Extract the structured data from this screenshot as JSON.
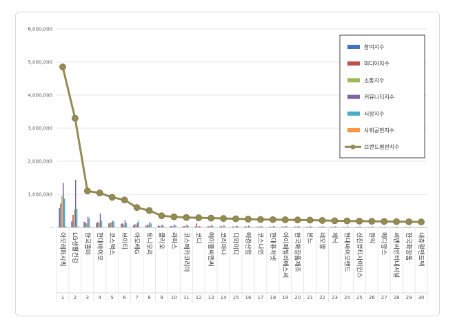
{
  "chart_data": {
    "type": "bar",
    "title": "",
    "xlabel": "",
    "ylabel": "",
    "ylim": [
      0,
      6000000
    ],
    "yticks": [
      "-",
      "1,000,000",
      "2,000,000",
      "3,000,000",
      "4,000,000",
      "5,000,000",
      "6,000,000"
    ],
    "grid": true,
    "legend_position": "top-right",
    "categories": [
      "아모레퍼시픽",
      "LG생활건강",
      "한국콜마",
      "현대바이오",
      "코스맥스",
      "브이티",
      "아모레G",
      "토니모리",
      "클리오",
      "라파스",
      "코스메카코리아",
      "코디",
      "에이블씨엔씨",
      "코리아나",
      "디와이디",
      "애경산업",
      "코스나인",
      "현대퓨처넷",
      "아이패밀리에스씨",
      "한국화장품제조",
      "본느",
      "네오팜",
      "제닉",
      "현대바이오랜드",
      "선진뷰티사이언스",
      "원익",
      "메디앙스",
      "씨앤씨인터내셔널",
      "한국화장품",
      "내츄럴엔도텍"
    ],
    "category_numbers": [
      "1",
      "2",
      "3",
      "4",
      "5",
      "6",
      "7",
      "8",
      "9",
      "10",
      "11",
      "12",
      "13",
      "14",
      "15",
      "16",
      "17",
      "18",
      "19",
      "20",
      "21",
      "22",
      "23",
      "24",
      "25",
      "26",
      "27",
      "28",
      "29",
      "30"
    ],
    "series": [
      {
        "name": "참여지수",
        "color": "#4472c4",
        "values": [
          580000,
          180000,
          170000,
          130000,
          120000,
          110000,
          60000,
          50000,
          60000,
          40000,
          35000,
          30000,
          30000,
          28000,
          25000,
          28000,
          22000,
          20000,
          22000,
          20000,
          18000,
          16000,
          15000,
          15000,
          14000,
          12000,
          12000,
          12000,
          11000,
          10000
        ]
      },
      {
        "name": "미디어지수",
        "color": "#c0504d",
        "values": [
          720000,
          380000,
          150000,
          160000,
          140000,
          120000,
          100000,
          90000,
          40000,
          45000,
          40000,
          120000,
          40000,
          40000,
          30000,
          30000,
          25000,
          20000,
          25000,
          25000,
          20000,
          20000,
          18000,
          15000,
          15000,
          15000,
          12000,
          12000,
          12000,
          10000
        ]
      },
      {
        "name": "소통지수",
        "color": "#9bbb59",
        "values": [
          960000,
          540000,
          120000,
          150000,
          160000,
          80000,
          80000,
          70000,
          35000,
          30000,
          30000,
          25000,
          30000,
          22000,
          20000,
          22000,
          20000,
          18000,
          18000,
          16000,
          15000,
          15000,
          14000,
          12000,
          12000,
          10000,
          10000,
          10000,
          9000,
          8000
        ]
      },
      {
        "name": "커뮤니티지수",
        "color": "#8064a2",
        "values": [
          1340000,
          1440000,
          320000,
          420000,
          200000,
          220000,
          140000,
          160000,
          80000,
          90000,
          80000,
          40000,
          70000,
          60000,
          50000,
          50000,
          45000,
          40000,
          40000,
          40000,
          35000,
          30000,
          30000,
          30000,
          25000,
          25000,
          20000,
          20000,
          18000,
          16000
        ]
      },
      {
        "name": "시장지수",
        "color": "#4bacc6",
        "values": [
          870000,
          560000,
          270000,
          200000,
          180000,
          130000,
          200000,
          120000,
          40000,
          60000,
          50000,
          25000,
          40000,
          25000,
          40000,
          30000,
          25000,
          25000,
          30000,
          25000,
          20000,
          20000,
          18000,
          16000,
          15000,
          14000,
          12000,
          12000,
          12000,
          10000
        ]
      },
      {
        "name": "사회공헌지수",
        "color": "#f79646",
        "values": [
          40000,
          30000,
          20000,
          15000,
          15000,
          10000,
          15000,
          10000,
          8000,
          8000,
          8000,
          5000,
          6000,
          5000,
          5000,
          6000,
          5000,
          4000,
          4000,
          4000,
          4000,
          3000,
          3000,
          3000,
          3000,
          3000,
          3000,
          3000,
          3000,
          3000
        ]
      }
    ],
    "line_series": {
      "name": "브랜드평판지수",
      "color": "#948a54",
      "values": [
        4850000,
        3300000,
        1100000,
        1040000,
        910000,
        830000,
        600000,
        510000,
        350000,
        320000,
        300000,
        290000,
        280000,
        270000,
        260000,
        250000,
        240000,
        235000,
        230000,
        225000,
        220000,
        210000,
        200000,
        195000,
        190000,
        185000,
        180000,
        175000,
        170000,
        165000
      ]
    }
  }
}
